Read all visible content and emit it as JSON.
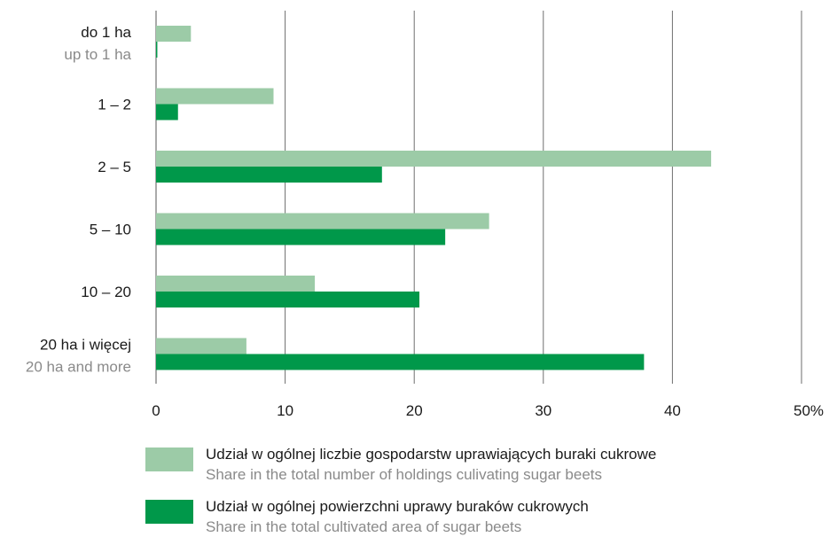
{
  "chart_data": {
    "type": "bar",
    "orientation": "horizontal",
    "categories": [
      {
        "main": "do 1 ha",
        "sub": "up to 1 ha"
      },
      {
        "main": "1 – 2",
        "sub": ""
      },
      {
        "main": "2 – 5",
        "sub": ""
      },
      {
        "main": "5 – 10",
        "sub": ""
      },
      {
        "main": "10 – 20",
        "sub": ""
      },
      {
        "main": "20 ha i więcej",
        "sub": "20 ha and more"
      }
    ],
    "series": [
      {
        "name": "Udział w ogólnej liczbie gospodarstw uprawiających buraki cukrowe",
        "name_en": "Share in the total number of holdings culivating sugar beets",
        "color": "#9ccba7",
        "values": [
          2.7,
          9.1,
          43.0,
          25.8,
          12.3,
          7.0
        ]
      },
      {
        "name": "Udział w ogólnej powierzchni uprawy buraków cukrowych",
        "name_en": "Share in the total cultivated area of sugar beets",
        "color": "#00984a",
        "values": [
          0.1,
          1.7,
          17.5,
          22.4,
          20.4,
          37.8
        ]
      }
    ],
    "xlim": [
      0,
      50
    ],
    "xticks": [
      "0",
      "10",
      "20",
      "30",
      "40",
      "50%"
    ],
    "xtick_values": [
      0,
      10,
      20,
      30,
      40,
      50
    ],
    "grid": true
  }
}
